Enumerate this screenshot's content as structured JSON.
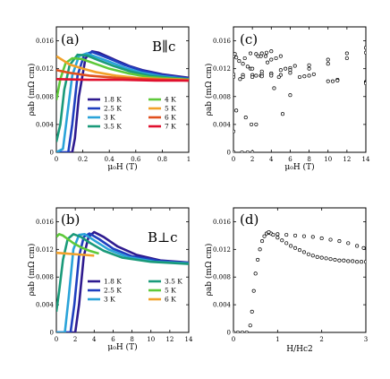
{
  "figure": {
    "panels": [
      {
        "tag": "(a)",
        "orientation": "B∥c",
        "xlabel": "μ₀H (T)",
        "ylabel": "ρab (mΩ cm)"
      },
      {
        "tag": "(b)",
        "orientation": "B⊥c",
        "xlabel": "μ₀H (T)",
        "ylabel": "ρab (mΩ cm)"
      },
      {
        "tag": "(c)",
        "xlabel": "μ₀H (T)",
        "ylabel": "ρab (mΩ cm)"
      },
      {
        "tag": "(d)",
        "xlabel": "H/Hc2",
        "ylabel": "ρab (mΩ cm)"
      }
    ]
  },
  "chart_data": [
    {
      "type": "line",
      "panel": "(a)",
      "title": "B∥c",
      "xlabel": "μ₀H (T)",
      "ylabel": "ρab (mΩ cm)",
      "xlim": [
        0,
        1
      ],
      "ylim": [
        0,
        0.018
      ],
      "xticks": [
        "0",
        "0.2",
        "0.4",
        "0.6",
        "0.8",
        "1"
      ],
      "yticks": [
        "0",
        "0.004",
        "0.008",
        "0.012",
        "0.016"
      ],
      "series": [
        {
          "name": "1.8 K",
          "color": "#2e1a8f",
          "x": [
            0,
            0.12,
            0.14,
            0.17,
            0.22,
            0.27,
            0.32,
            0.38,
            0.45,
            0.55,
            0.65,
            0.8,
            1.0
          ],
          "y": [
            0,
            0,
            0.002,
            0.008,
            0.0135,
            0.0145,
            0.0143,
            0.0138,
            0.0132,
            0.0124,
            0.0118,
            0.0112,
            0.0107
          ]
        },
        {
          "name": "2.5 K",
          "color": "#1f3fbf",
          "x": [
            0,
            0.09,
            0.12,
            0.16,
            0.21,
            0.27,
            0.34,
            0.42,
            0.52,
            0.65,
            0.8,
            1.0
          ],
          "y": [
            0,
            0,
            0.004,
            0.011,
            0.014,
            0.0144,
            0.0139,
            0.0133,
            0.0125,
            0.0117,
            0.0111,
            0.0106
          ]
        },
        {
          "name": "3 K",
          "color": "#2aa3d9",
          "x": [
            0,
            0.05,
            0.08,
            0.12,
            0.17,
            0.23,
            0.3,
            0.4,
            0.52,
            0.65,
            0.8,
            1.0
          ],
          "y": [
            0,
            0.0005,
            0.005,
            0.011,
            0.0138,
            0.0142,
            0.0137,
            0.013,
            0.0121,
            0.0114,
            0.0109,
            0.0105
          ]
        },
        {
          "name": "3.5 K",
          "color": "#1a9a7a",
          "x": [
            0,
            0.03,
            0.06,
            0.1,
            0.16,
            0.23,
            0.32,
            0.43,
            0.56,
            0.7,
            0.85,
            1.0
          ],
          "y": [
            0.0015,
            0.004,
            0.009,
            0.0125,
            0.014,
            0.0139,
            0.0132,
            0.0124,
            0.0116,
            0.011,
            0.0107,
            0.0105
          ]
        },
        {
          "name": "4 K",
          "color": "#5ec93a",
          "x": [
            0,
            0.03,
            0.07,
            0.12,
            0.19,
            0.28,
            0.4,
            0.55,
            0.7,
            0.85,
            1.0
          ],
          "y": [
            0.0075,
            0.0105,
            0.0128,
            0.0135,
            0.0134,
            0.0128,
            0.012,
            0.0113,
            0.0108,
            0.0106,
            0.0104
          ]
        },
        {
          "name": "5 K",
          "color": "#f2a12a",
          "x": [
            0,
            0.05,
            0.1,
            0.2,
            0.3,
            0.45,
            0.6,
            0.8,
            1.0
          ],
          "y": [
            0.0138,
            0.0132,
            0.0126,
            0.012,
            0.0115,
            0.011,
            0.0107,
            0.0105,
            0.0104
          ]
        },
        {
          "name": "6 K",
          "color": "#e0501e",
          "x": [
            0,
            0.1,
            0.25,
            0.45,
            0.65,
            0.85,
            1.0
          ],
          "y": [
            0.0118,
            0.0114,
            0.011,
            0.0107,
            0.0105,
            0.0104,
            0.0103
          ]
        },
        {
          "name": "7 K",
          "color": "#e0102e",
          "x": [
            0,
            0.25,
            0.5,
            0.75,
            1.0
          ],
          "y": [
            0.0105,
            0.0104,
            0.0104,
            0.0103,
            0.0103
          ]
        }
      ]
    },
    {
      "type": "line",
      "panel": "(b)",
      "title": "B⊥c",
      "xlabel": "μ₀H (T)",
      "ylabel": "ρab (mΩ cm)",
      "xlim": [
        0,
        14
      ],
      "ylim": [
        0,
        0.018
      ],
      "xticks": [
        "0",
        "2",
        "4",
        "6",
        "8",
        "10",
        "12",
        "14"
      ],
      "yticks": [
        "0",
        "0.004",
        "0.008",
        "0.012",
        "0.016"
      ],
      "series": [
        {
          "name": "1.8 K",
          "color": "#2e1a8f",
          "x": [
            0,
            2.0,
            2.4,
            2.9,
            3.4,
            4.0,
            5.0,
            6.5,
            8.5,
            11,
            14
          ],
          "y": [
            0,
            0,
            0.004,
            0.011,
            0.0138,
            0.0145,
            0.0138,
            0.0124,
            0.0112,
            0.0104,
            0.0101
          ]
        },
        {
          "name": "2.5 K",
          "color": "#1f3fbf",
          "x": [
            0,
            1.5,
            1.9,
            2.4,
            2.9,
            3.5,
            4.5,
            6.0,
            8.0,
            11,
            14
          ],
          "y": [
            0,
            0,
            0.004,
            0.011,
            0.0138,
            0.0143,
            0.0135,
            0.0121,
            0.011,
            0.0103,
            0.01
          ]
        },
        {
          "name": "3 K",
          "color": "#2aa3d9",
          "x": [
            0,
            0.9,
            1.3,
            1.8,
            2.4,
            3.0,
            4.0,
            5.5,
            7.5,
            10.5,
            14
          ],
          "y": [
            0,
            0,
            0.005,
            0.012,
            0.0141,
            0.0142,
            0.0133,
            0.012,
            0.0109,
            0.0102,
            0.01
          ]
        },
        {
          "name": "3.5 K",
          "color": "#1a9a7a",
          "x": [
            0,
            0.3,
            0.7,
            1.2,
            1.8,
            2.6,
            3.6,
            5.0,
            7.0,
            10,
            14
          ],
          "y": [
            0.003,
            0.006,
            0.0105,
            0.0135,
            0.0142,
            0.0138,
            0.0129,
            0.0118,
            0.0108,
            0.0102,
            0.0099
          ]
        },
        {
          "name": "5 K",
          "color": "#5ec93a",
          "x": [
            0,
            0.3,
            0.7,
            1.2,
            1.8,
            2.6,
            3.5,
            4.5
          ],
          "y": [
            0.0138,
            0.0142,
            0.014,
            0.0135,
            0.0129,
            0.0123,
            0.0118,
            0.0114
          ]
        },
        {
          "name": "6 K",
          "color": "#f2a12a",
          "x": [
            0,
            1.0,
            2.0,
            3.0,
            4.0
          ],
          "y": [
            0.0115,
            0.0114,
            0.0113,
            0.0112,
            0.0111
          ]
        }
      ]
    },
    {
      "type": "scatter",
      "panel": "(c)",
      "xlabel": "μ₀H (T)",
      "ylabel": "ρab (mΩ cm)",
      "xlim": [
        0,
        14
      ],
      "ylim": [
        0,
        0.018
      ],
      "xticks": [
        "0",
        "2",
        "4",
        "6",
        "8",
        "10",
        "12",
        "14"
      ],
      "yticks": [
        "0",
        "0.004",
        "0.008",
        "0.012",
        "0.016"
      ],
      "series": [
        {
          "x": [
            0,
            2.0,
            2.4,
            2.9,
            3.4,
            4.0,
            5.0,
            6.5,
            8.5,
            11,
            14
          ],
          "y": [
            0,
            0,
            0.004,
            0.011,
            0.0138,
            0.0145,
            0.0138,
            0.0124,
            0.0112,
            0.0104,
            0.0101
          ]
        },
        {
          "x": [
            0,
            1.5,
            1.9,
            2.4,
            2.9,
            3.5,
            4.5,
            6.0,
            8.0,
            11,
            14
          ],
          "y": [
            0,
            0,
            0.004,
            0.011,
            0.0138,
            0.0143,
            0.0135,
            0.0121,
            0.011,
            0.0103,
            0.01
          ]
        },
        {
          "x": [
            0,
            0.9,
            1.3,
            1.8,
            2.4,
            3.0,
            4.0,
            5.5,
            7.5,
            10.5,
            14
          ],
          "y": [
            0,
            0,
            0.005,
            0.012,
            0.0141,
            0.0142,
            0.0133,
            0.012,
            0.0109,
            0.0102,
            0.01
          ]
        },
        {
          "x": [
            0,
            0.3,
            0.7,
            1.2,
            1.8,
            2.6,
            3.6,
            5.0,
            7.0,
            10,
            14
          ],
          "y": [
            0.003,
            0.006,
            0.0105,
            0.0135,
            0.0142,
            0.0138,
            0.0129,
            0.0118,
            0.0108,
            0.0102,
            0.0099
          ]
        },
        {
          "x": [
            0,
            0.15,
            0.3,
            0.6,
            1.0,
            1.5,
            2.0,
            3.0,
            4.0,
            5.0
          ],
          "y": [
            0.0138,
            0.0141,
            0.0136,
            0.0131,
            0.0127,
            0.0123,
            0.012,
            0.0116,
            0.0113,
            0.0111
          ]
        },
        {
          "x": [
            0,
            1.0,
            2.0,
            3.0,
            4.0,
            6.0,
            8.0,
            10.0,
            12.0,
            14.0
          ],
          "y": [
            0.0112,
            0.0111,
            0.0111,
            0.0112,
            0.0113,
            0.0118,
            0.0125,
            0.0133,
            0.0142,
            0.015
          ]
        },
        {
          "x": [
            0,
            1.0,
            2.0,
            3.0,
            4.0,
            6.0,
            8.0,
            10.0,
            12.0,
            14.0
          ],
          "y": [
            0.0108,
            0.0108,
            0.0108,
            0.0109,
            0.011,
            0.0114,
            0.012,
            0.0127,
            0.0135,
            0.0143
          ]
        },
        {
          "x": [
            4.3,
            5.2,
            6.0,
            4.8
          ],
          "y": [
            0.0092,
            0.0055,
            0.0082,
            0.0108
          ]
        }
      ]
    },
    {
      "type": "scatter",
      "panel": "(d)",
      "xlabel": "H/Hc2",
      "ylabel": "ρab (mΩ cm)",
      "xlim": [
        0,
        3
      ],
      "ylim": [
        0,
        0.018
      ],
      "xticks": [
        "0",
        "1",
        "2",
        "3"
      ],
      "yticks": [
        "0",
        "0.004",
        "0.008",
        "0.012",
        "0.016"
      ],
      "series": [
        {
          "x": [
            0.0,
            0.1,
            0.2,
            0.3,
            0.38,
            0.42,
            0.46,
            0.5,
            0.55,
            0.6,
            0.65,
            0.7,
            0.75,
            0.8,
            0.85,
            0.9,
            1.0,
            1.1,
            1.2,
            1.3,
            1.4,
            1.5,
            1.6,
            1.7,
            1.8,
            1.9,
            2.0,
            2.1,
            2.2,
            2.3,
            2.4,
            2.5,
            2.6,
            2.7,
            2.8,
            2.9,
            3.0
          ],
          "y": [
            0.0,
            0.0,
            0.0,
            0.0,
            0.001,
            0.003,
            0.006,
            0.0085,
            0.0105,
            0.012,
            0.0132,
            0.0139,
            0.0143,
            0.0144,
            0.0143,
            0.0141,
            0.0137,
            0.0133,
            0.0129,
            0.0125,
            0.0122,
            0.0119,
            0.0116,
            0.0113,
            0.0111,
            0.0109,
            0.0108,
            0.0107,
            0.0106,
            0.0105,
            0.0104,
            0.0104,
            0.0103,
            0.0103,
            0.0102,
            0.0102,
            0.0102
          ]
        },
        {
          "x": [
            0.8,
            1.0,
            1.2,
            1.4,
            1.6,
            1.8,
            2.0,
            2.2,
            2.4,
            2.6,
            2.8,
            2.95
          ],
          "y": [
            0.0145,
            0.0142,
            0.0141,
            0.014,
            0.0139,
            0.0138,
            0.0136,
            0.0134,
            0.0132,
            0.0129,
            0.0125,
            0.0122
          ]
        }
      ]
    }
  ]
}
